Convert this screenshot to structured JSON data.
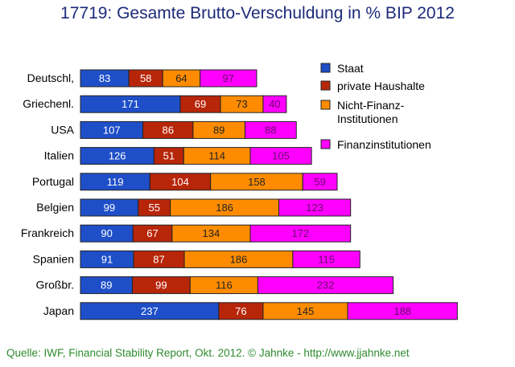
{
  "chart_data": {
    "type": "bar",
    "orientation": "horizontal",
    "stacked": true,
    "title": "17719: Gesamte Brutto-Verschuldung in % BIP 2012",
    "categories": [
      "Deutschl,",
      "Griechenl.",
      "USA",
      "Italien",
      "Portugal",
      "Belgien",
      "Frankreich",
      "Spanien",
      "Großbr.",
      "Japan"
    ],
    "series": [
      {
        "name": "Staat",
        "color": "#1f4fc8",
        "label_color": "#ffffff",
        "values": [
          83,
          171,
          107,
          126,
          119,
          99,
          90,
          91,
          89,
          237
        ]
      },
      {
        "name": "private Haushalte",
        "color": "#b8260a",
        "label_color": "#ffffff",
        "values": [
          58,
          69,
          86,
          51,
          104,
          55,
          67,
          87,
          99,
          76
        ]
      },
      {
        "name": "Nicht-Finanz-Institutionen",
        "legend_lines": [
          "Nicht-Finanz-",
          "Institutionen"
        ],
        "color": "#ff8c00",
        "label_color": "#222222",
        "values": [
          64,
          73,
          89,
          114,
          158,
          186,
          134,
          186,
          116,
          145
        ]
      },
      {
        "name": "Finanzinstitutionen",
        "color": "#ff00ff",
        "label_color": "#6a0a6a",
        "values": [
          97,
          40,
          88,
          105,
          59,
          123,
          172,
          115,
          232,
          188
        ]
      }
    ],
    "grid": false,
    "legend_position": "right",
    "source": "Quelle: IWF, Financial Stability Report, Okt. 2012. © Jahnke - http://www.jjahnke.net"
  }
}
